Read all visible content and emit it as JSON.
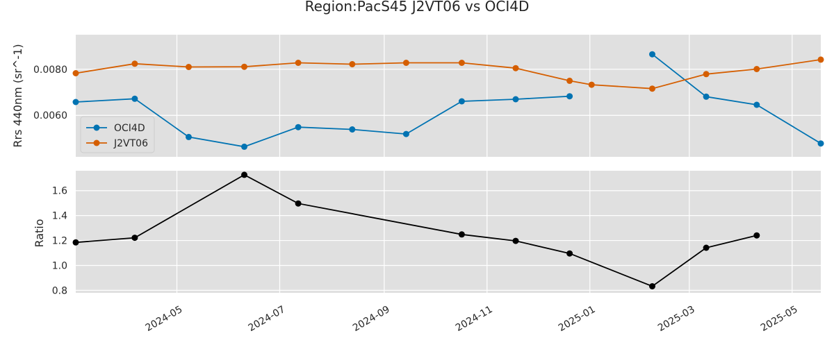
{
  "chart_data": [
    {
      "type": "line",
      "title": "Region:PacS45 J2VT06 vs OCI4D",
      "ylabel": "Rrs 440nm (sr^-1)",
      "xlim": [
        "2024-03-02",
        "2025-05-18"
      ],
      "ylim": [
        0.0042,
        0.0095
      ],
      "yticks": [
        0.006,
        0.008
      ],
      "ytick_labels": [
        "0.0060",
        "0.0080"
      ],
      "grid": true,
      "legend_position": "lower-left",
      "series": [
        {
          "name": "OCI4D",
          "color": "#0173b2",
          "x": [
            "2024-03-02",
            "2024-04-06",
            "2024-05-08",
            "2024-06-10",
            "2024-07-12",
            "2024-08-13",
            "2024-09-14",
            "2024-10-17",
            "2024-11-18",
            "2024-12-20",
            "2025-02-07",
            "2025-03-11",
            "2025-04-10",
            "2025-05-18"
          ],
          "y": [
            0.00658,
            0.00672,
            0.00506,
            0.00464,
            0.00549,
            0.00539,
            0.00519,
            0.00661,
            0.0067,
            0.00683,
            null,
            null,
            null,
            null
          ],
          "y2": [
            null,
            null,
            null,
            null,
            null,
            null,
            null,
            null,
            null,
            null,
            0.00865,
            0.00681,
            0.00646,
            0.00478
          ]
        },
        {
          "name": "J2VT06",
          "color": "#d55e00",
          "x": [
            "2024-03-02",
            "2024-04-06",
            "2024-05-08",
            "2024-06-10",
            "2024-07-12",
            "2024-08-13",
            "2024-09-14",
            "2024-10-17",
            "2024-11-18",
            "2024-12-20",
            "2025-01-02",
            "2025-02-07",
            "2025-03-11",
            "2025-04-10",
            "2025-05-18"
          ],
          "y": [
            0.00783,
            0.00824,
            0.0081,
            0.00811,
            0.00828,
            0.00822,
            0.00828,
            0.00828,
            0.00805,
            0.0075,
            0.00733,
            0.00716,
            0.00779,
            0.00801,
            0.00842
          ]
        }
      ]
    },
    {
      "type": "line",
      "ylabel": "Ratio",
      "xlim": [
        "2024-03-02",
        "2025-05-18"
      ],
      "ylim": [
        0.78,
        1.76
      ],
      "yticks": [
        0.8,
        1.0,
        1.2,
        1.4,
        1.6
      ],
      "ytick_labels": [
        "0.8",
        "1.0",
        "1.2",
        "1.4",
        "1.6"
      ],
      "xticks": [
        "2024-05-01",
        "2024-07-01",
        "2024-09-01",
        "2024-11-01",
        "2025-01-01",
        "2025-03-01",
        "2025-05-01"
      ],
      "xtick_labels": [
        "2024-05",
        "2024-07",
        "2024-09",
        "2024-11",
        "2025-01",
        "2025-03",
        "2025-05"
      ],
      "grid": true,
      "series": [
        {
          "color": "#000000",
          "x": [
            "2024-03-02",
            "2024-04-06",
            "2024-06-10",
            "2024-07-12",
            "2024-10-17",
            "2024-11-18",
            "2024-12-20",
            "2025-02-07",
            "2025-03-11",
            "2025-04-10"
          ],
          "y": [
            1.185,
            1.222,
            1.727,
            1.497,
            1.249,
            1.197,
            1.096,
            0.833,
            1.142,
            1.241
          ]
        }
      ]
    }
  ]
}
